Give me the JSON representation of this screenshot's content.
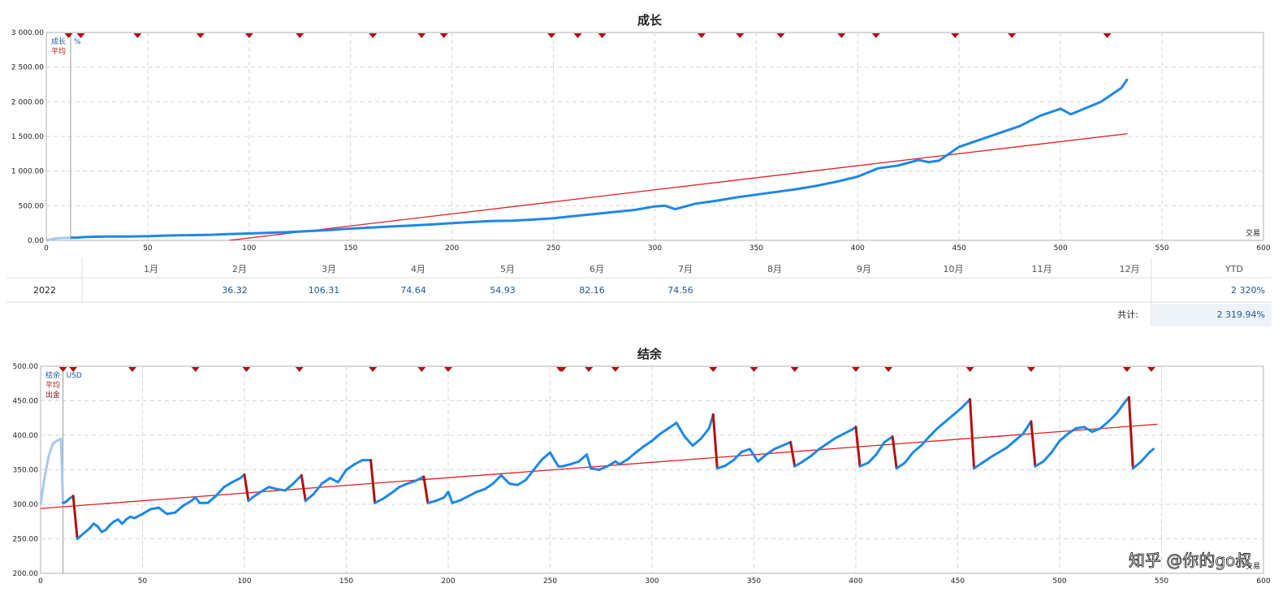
{
  "chart_data": [
    {
      "type": "line",
      "title": "成长",
      "legend": [
        "成长",
        "平均"
      ],
      "unit": "%",
      "xlabel": "交易",
      "xlim": [
        0,
        600
      ],
      "ylim": [
        0,
        3000
      ],
      "xticks": [
        "0",
        "50",
        "100",
        "150",
        "200",
        "250",
        "300",
        "350",
        "400",
        "450",
        "500",
        "550",
        "600"
      ],
      "yticks": [
        "0.00",
        "500.00",
        "1 000.00",
        "1 500.00",
        "2 000.00",
        "2 500.00",
        "3 000.00"
      ],
      "grid": true,
      "legend_position": "top-left",
      "deposit_x": 12,
      "markers_x": [
        11,
        17,
        45,
        76,
        100,
        125,
        161,
        185,
        196,
        249,
        262,
        274,
        323,
        342,
        362,
        392,
        409,
        448,
        476,
        523
      ],
      "series": [
        {
          "name": "成长",
          "color": "#1e88e5",
          "x": [
            0,
            5,
            12,
            15,
            20,
            30,
            40,
            50,
            60,
            70,
            80,
            90,
            100,
            110,
            120,
            130,
            140,
            145,
            150,
            160,
            170,
            180,
            190,
            200,
            210,
            220,
            230,
            240,
            250,
            260,
            270,
            280,
            290,
            300,
            305,
            310,
            320,
            330,
            340,
            350,
            360,
            370,
            380,
            390,
            400,
            410,
            420,
            430,
            435,
            440,
            450,
            460,
            470,
            480,
            490,
            500,
            505,
            510,
            520,
            530,
            533
          ],
          "y": [
            0,
            30,
            40,
            40,
            50,
            55,
            55,
            60,
            70,
            75,
            80,
            90,
            100,
            110,
            120,
            135,
            150,
            160,
            170,
            185,
            200,
            215,
            230,
            250,
            265,
            280,
            285,
            300,
            320,
            350,
            380,
            410,
            440,
            490,
            500,
            450,
            530,
            570,
            620,
            660,
            700,
            740,
            790,
            850,
            920,
            1040,
            1080,
            1160,
            1130,
            1150,
            1350,
            1450,
            1550,
            1650,
            1800,
            1900,
            1820,
            1880,
            2000,
            2200,
            2330
          ]
        },
        {
          "name": "平均",
          "color": "#e02020",
          "x": [
            90,
            533
          ],
          "y": [
            0,
            1540
          ]
        }
      ]
    },
    {
      "type": "table",
      "columns": [
        "1月",
        "2月",
        "3月",
        "4月",
        "5月",
        "6月",
        "7月",
        "8月",
        "9月",
        "10月",
        "11月",
        "12月",
        "YTD"
      ],
      "rows": [
        {
          "year": "2022",
          "values": [
            "",
            "36.32",
            "106.31",
            "74.64",
            "54.93",
            "82.16",
            "74.56",
            "",
            "",
            "",
            "",
            ""
          ],
          "ytd": "2 320%"
        }
      ],
      "total_label": "共计:",
      "total_value": "2 319.94%"
    },
    {
      "type": "line",
      "title": "结余",
      "legend": [
        "结余",
        "平均",
        "出金"
      ],
      "unit": "USD",
      "xlabel": "交易",
      "xlim": [
        0,
        600
      ],
      "ylim": [
        200,
        500
      ],
      "xticks": [
        "0",
        "50",
        "100",
        "150",
        "200",
        "250",
        "300",
        "350",
        "400",
        "450",
        "500",
        "550",
        "600"
      ],
      "yticks": [
        "200.00",
        "250.00",
        "300.00",
        "350.00",
        "400.00",
        "450.00",
        "500.00"
      ],
      "grid": true,
      "legend_position": "top-left",
      "deposit_x": 11,
      "markers_x": [
        11,
        16,
        45,
        76,
        101,
        127,
        163,
        187,
        200,
        255,
        256,
        269,
        282,
        330,
        350,
        370,
        400,
        416,
        456,
        486,
        533,
        545
      ],
      "withdrawals_x": [
        11,
        45,
        76,
        102,
        128,
        163,
        189,
        200,
        254,
        269,
        283,
        331,
        351,
        368,
        401,
        418,
        457,
        487,
        535,
        546
      ],
      "series": [
        {
          "name": "结余",
          "color": "#1e88e5",
          "x": [
            0,
            2,
            4,
            6,
            8,
            10,
            11,
            12,
            13,
            14,
            16,
            18,
            20,
            22,
            24,
            26,
            28,
            30,
            32,
            34,
            36,
            38,
            40,
            42,
            44,
            46,
            50,
            54,
            58,
            62,
            66,
            70,
            74,
            76,
            78,
            82,
            86,
            90,
            94,
            98,
            100,
            102,
            104,
            108,
            112,
            116,
            120,
            124,
            128,
            130,
            134,
            138,
            142,
            146,
            150,
            154,
            158,
            162,
            164,
            168,
            172,
            176,
            180,
            184,
            188,
            190,
            194,
            198,
            200,
            202,
            206,
            210,
            214,
            218,
            222,
            226,
            230,
            234,
            238,
            242,
            246,
            250,
            254,
            256,
            260,
            264,
            268,
            270,
            274,
            278,
            282,
            284,
            288,
            292,
            296,
            300,
            304,
            308,
            312,
            316,
            320,
            324,
            328,
            330,
            332,
            336,
            340,
            344,
            348,
            352,
            356,
            360,
            364,
            368,
            370,
            374,
            378,
            382,
            386,
            390,
            394,
            398,
            400,
            402,
            406,
            410,
            414,
            418,
            420,
            424,
            428,
            432,
            436,
            440,
            444,
            448,
            452,
            456,
            458,
            462,
            466,
            470,
            474,
            478,
            482,
            486,
            488,
            492,
            496,
            500,
            504,
            508,
            512,
            516,
            520,
            524,
            528,
            532,
            534,
            536,
            540,
            544,
            546
          ],
          "y": [
            300,
            340,
            370,
            388,
            392,
            395,
            302,
            303,
            305,
            308,
            312,
            250,
            255,
            260,
            265,
            272,
            268,
            260,
            263,
            270,
            275,
            278,
            272,
            278,
            282,
            280,
            286,
            293,
            295,
            286,
            288,
            298,
            305,
            310,
            302,
            302,
            312,
            325,
            332,
            338,
            343,
            305,
            310,
            318,
            325,
            322,
            320,
            330,
            342,
            305,
            315,
            330,
            338,
            332,
            350,
            358,
            364,
            364,
            302,
            308,
            316,
            325,
            330,
            334,
            340,
            302,
            305,
            310,
            318,
            302,
            306,
            312,
            318,
            322,
            330,
            342,
            330,
            328,
            335,
            350,
            365,
            375,
            355,
            355,
            358,
            362,
            372,
            352,
            350,
            355,
            362,
            358,
            365,
            375,
            384,
            392,
            402,
            410,
            418,
            398,
            385,
            395,
            410,
            430,
            352,
            356,
            364,
            376,
            380,
            362,
            372,
            380,
            385,
            390,
            355,
            362,
            370,
            380,
            388,
            396,
            402,
            408,
            412,
            355,
            360,
            372,
            390,
            398,
            352,
            360,
            375,
            385,
            398,
            410,
            420,
            430,
            440,
            452,
            352,
            360,
            368,
            375,
            382,
            392,
            402,
            420,
            355,
            362,
            375,
            392,
            402,
            410,
            412,
            405,
            410,
            420,
            432,
            448,
            455,
            352,
            362,
            375,
            380
          ]
        },
        {
          "name": "平均",
          "color": "#e02020",
          "x": [
            0,
            548
          ],
          "y": [
            294,
            416
          ]
        }
      ]
    }
  ],
  "watermark": "知乎 @你的go叔"
}
